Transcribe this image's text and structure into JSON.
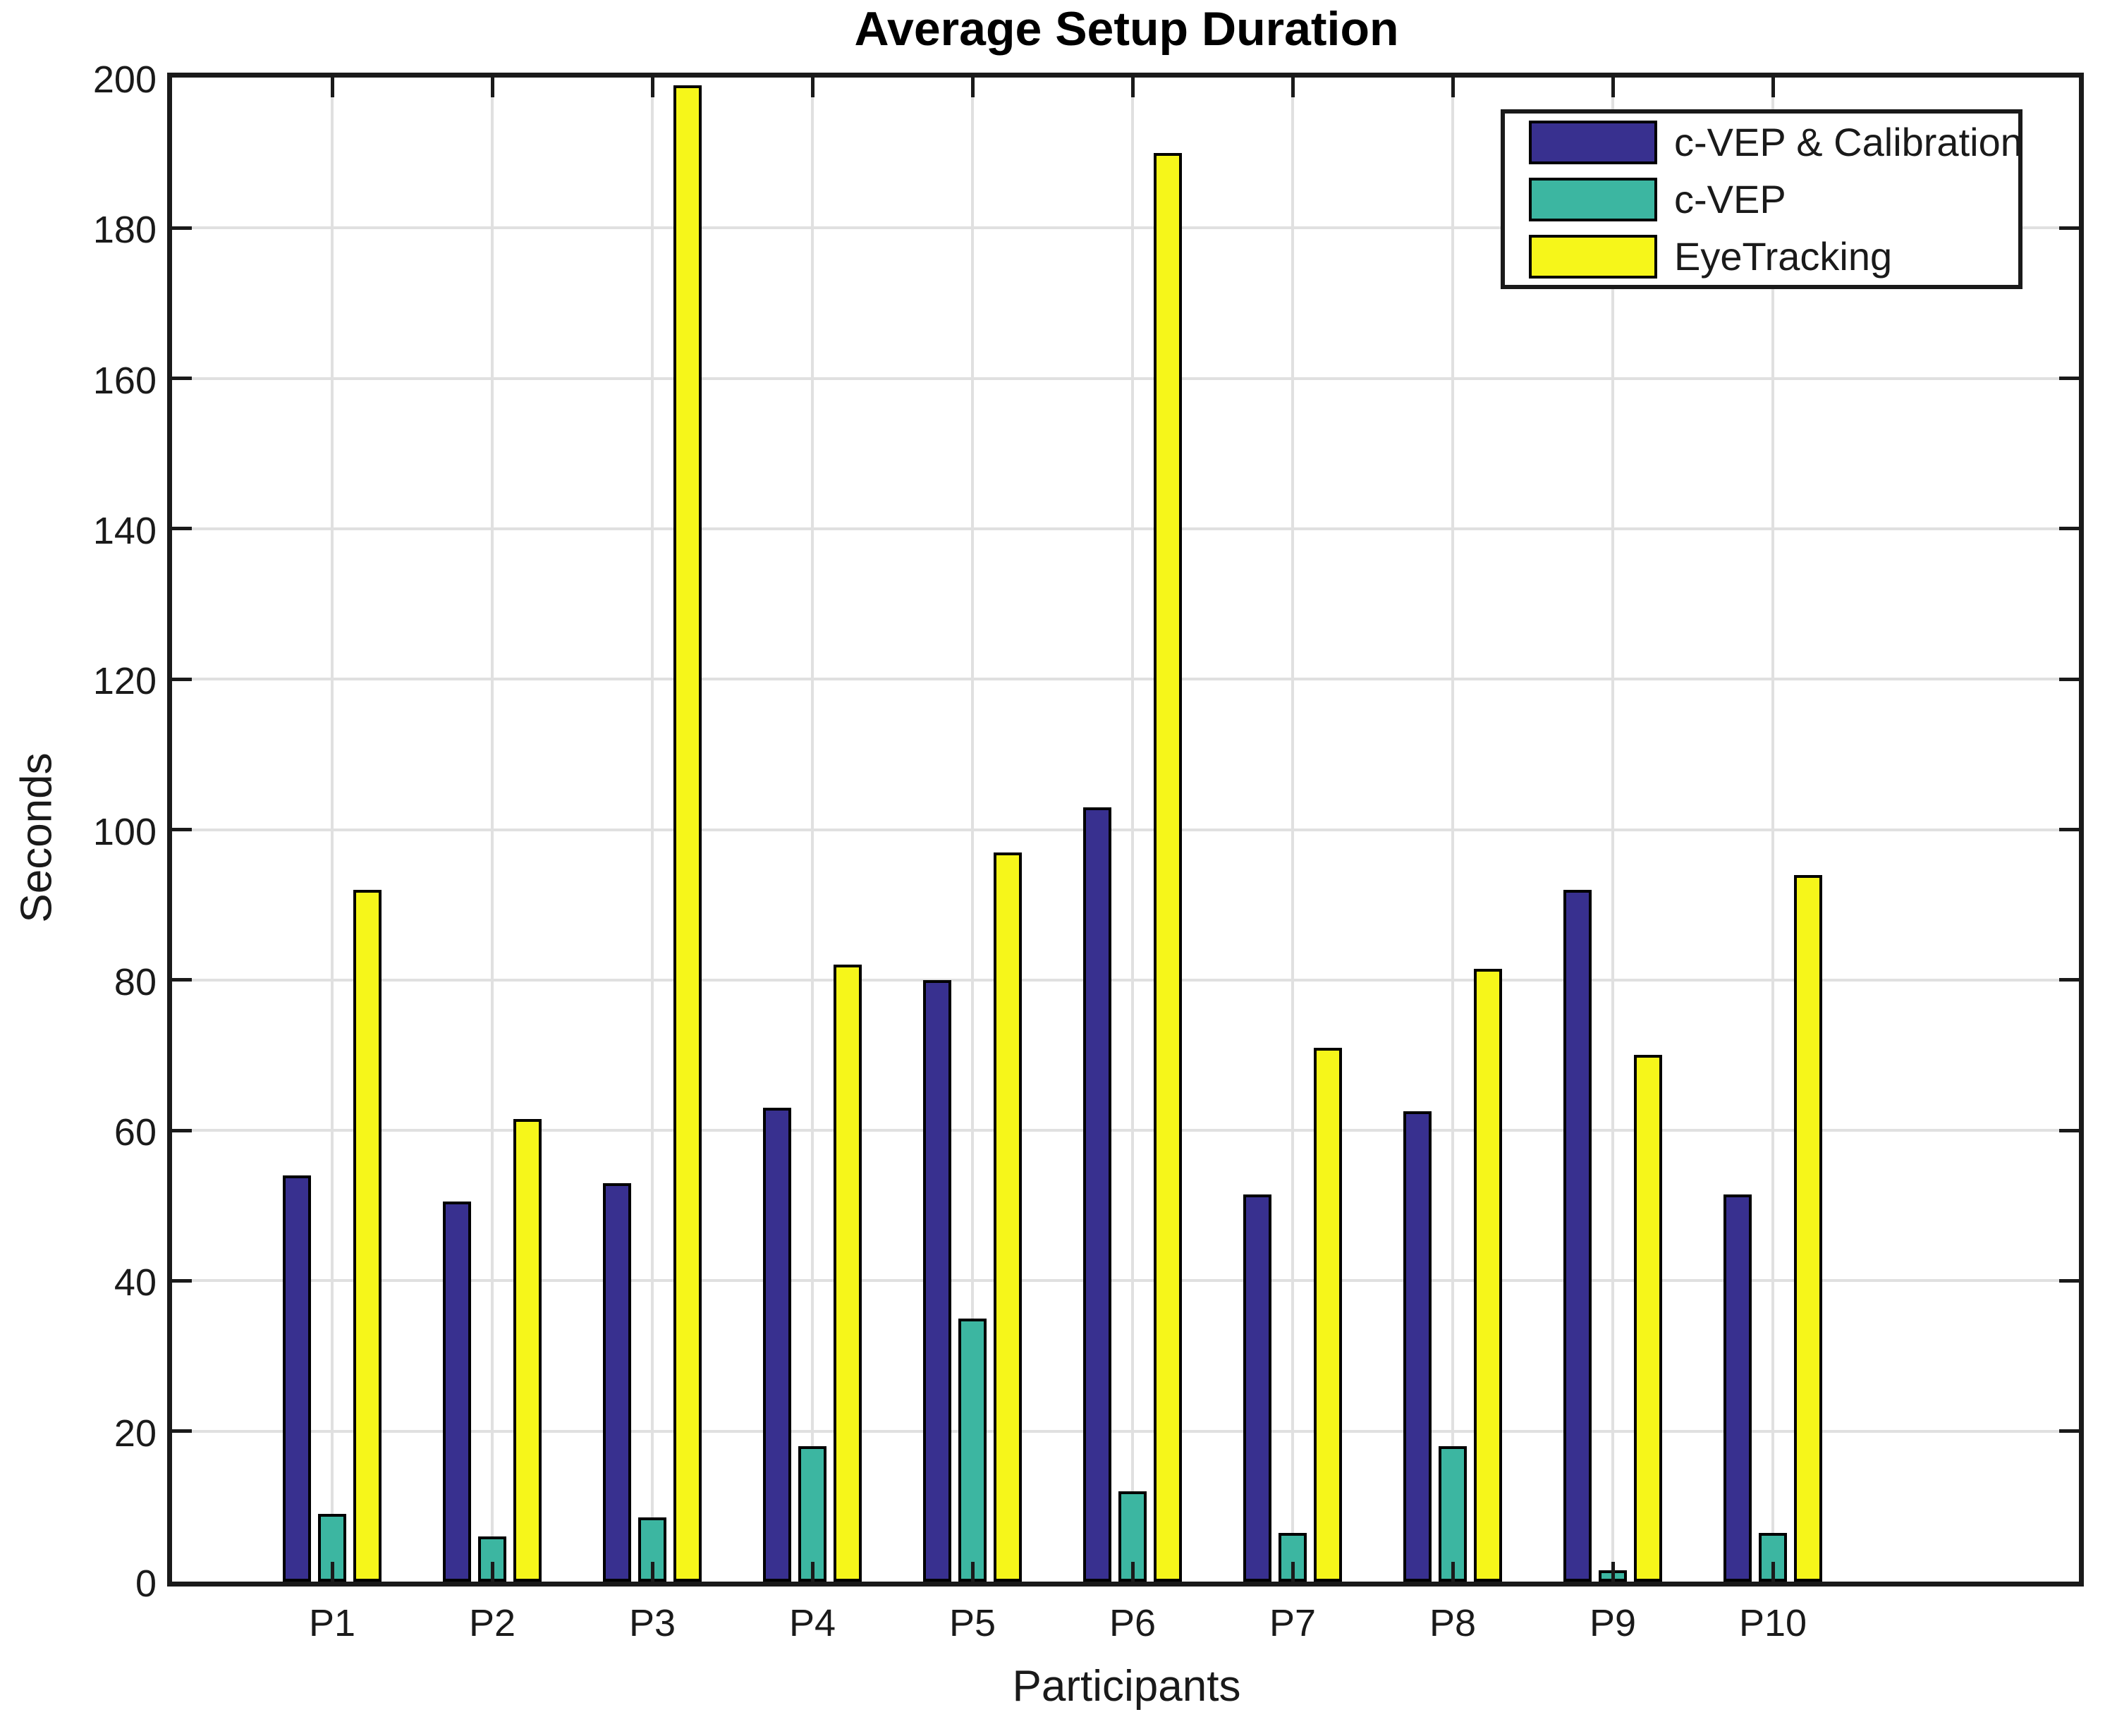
{
  "chart_data": {
    "type": "bar",
    "title": "Average Setup Duration",
    "xlabel": "Participants",
    "ylabel": "Seconds",
    "categories": [
      "P1",
      "P2",
      "P3",
      "P4",
      "P5",
      "P6",
      "P7",
      "P8",
      "P9",
      "P10"
    ],
    "series": [
      {
        "name": "c-VEP & Calibration",
        "color": "#38308F",
        "values": [
          54,
          50.5,
          53,
          63,
          80,
          103,
          51.5,
          62.5,
          92,
          51.5
        ]
      },
      {
        "name": "c-VEP",
        "color": "#3CB6A1",
        "values": [
          9,
          6,
          8.5,
          18,
          35,
          12,
          6.5,
          18,
          1.5,
          6.5
        ]
      },
      {
        "name": "EyeTracking",
        "color": "#F6F61A",
        "values": [
          92,
          61.5,
          199,
          82,
          97,
          190,
          71,
          81.5,
          70,
          94
        ]
      }
    ],
    "ylim": [
      0,
      200
    ],
    "ytick_step": 20,
    "ytick_labels": [
      "0",
      "20",
      "40",
      "60",
      "80",
      "100",
      "120",
      "140",
      "160",
      "180",
      "200"
    ],
    "grid": true,
    "legend_position": "top-right",
    "axis_color": "#1a1a1a",
    "grid_color": "#e0e0e0",
    "bar_edge_color": "#000000"
  }
}
